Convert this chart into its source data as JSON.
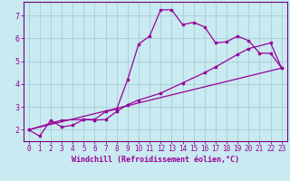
{
  "xlabel": "Windchill (Refroidissement éolien,°C)",
  "bg_color": "#c8eaf0",
  "grid_color": "#a8ccd8",
  "line_color": "#990099",
  "spine_color": "#7a007a",
  "xlim": [
    -0.5,
    23.5
  ],
  "ylim": [
    1.5,
    7.6
  ],
  "xticks": [
    0,
    1,
    2,
    3,
    4,
    5,
    6,
    7,
    8,
    9,
    10,
    11,
    12,
    13,
    14,
    15,
    16,
    17,
    18,
    19,
    20,
    21,
    22,
    23
  ],
  "yticks": [
    2,
    3,
    4,
    5,
    6,
    7
  ],
  "line1_x": [
    0,
    1,
    2,
    3,
    4,
    5,
    6,
    7,
    8,
    9,
    10,
    11,
    12,
    13,
    14,
    15,
    16,
    17,
    18,
    19,
    20,
    21,
    22,
    23
  ],
  "line1_y": [
    2.0,
    1.72,
    2.42,
    2.12,
    2.2,
    2.45,
    2.45,
    2.8,
    2.9,
    4.2,
    5.75,
    6.1,
    7.25,
    7.25,
    6.6,
    6.7,
    6.5,
    5.8,
    5.85,
    6.1,
    5.9,
    5.35,
    5.35,
    4.7
  ],
  "line2_x": [
    0,
    3,
    5,
    6,
    7,
    8,
    9,
    10,
    12,
    14,
    16,
    17,
    19,
    20,
    22,
    23
  ],
  "line2_y": [
    2.0,
    2.42,
    2.45,
    2.42,
    2.45,
    2.8,
    3.1,
    3.3,
    3.6,
    4.05,
    4.5,
    4.75,
    5.3,
    5.55,
    5.8,
    4.7
  ],
  "line3_x": [
    0,
    23
  ],
  "line3_y": [
    2.0,
    4.7
  ],
  "markersize": 2.5,
  "linewidth": 0.9,
  "xlabel_fontsize": 6.0,
  "tick_fontsize": 5.5
}
